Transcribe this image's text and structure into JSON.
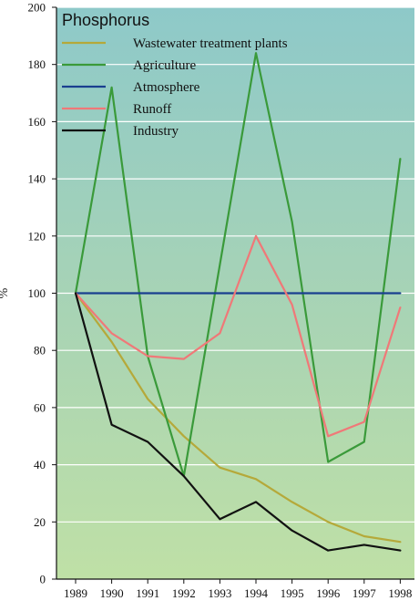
{
  "chart_data": {
    "type": "line",
    "title": "Phosphorus",
    "xlabel": "",
    "ylabel": "%",
    "x": [
      "1989",
      "1990",
      "1991",
      "1992",
      "1993",
      "1994",
      "1995",
      "1996",
      "1997",
      "1998"
    ],
    "ylim": [
      0,
      200
    ],
    "yticks": [
      0,
      20,
      40,
      60,
      80,
      100,
      120,
      140,
      160,
      180,
      200
    ],
    "grid": "horizontal",
    "legend_position": "top-left",
    "series": [
      {
        "name": "Wastewater treatment plants",
        "color": "#b5a93a",
        "values": [
          100,
          83,
          63,
          50,
          39,
          35,
          27,
          20,
          15,
          13
        ]
      },
      {
        "name": "Agriculture",
        "color": "#3a9a3a",
        "values": [
          100,
          172,
          78,
          36,
          110,
          184,
          125,
          41,
          48,
          147
        ]
      },
      {
        "name": "Atmosphere",
        "color": "#1a3f8f",
        "values": [
          100,
          100,
          100,
          100,
          100,
          100,
          100,
          100,
          100,
          100
        ]
      },
      {
        "name": "Runoff",
        "color": "#f07878",
        "values": [
          100,
          86,
          78,
          77,
          86,
          120,
          96,
          50,
          55,
          95
        ]
      },
      {
        "name": "Industry",
        "color": "#111111",
        "values": [
          100,
          54,
          48,
          36,
          21,
          27,
          17,
          10,
          12,
          10
        ]
      }
    ]
  }
}
